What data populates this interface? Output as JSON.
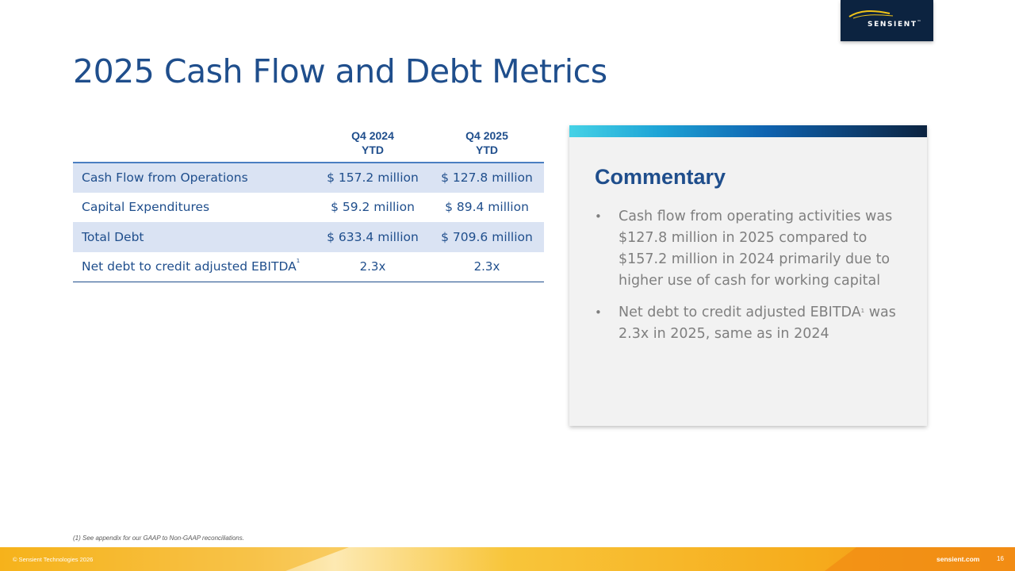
{
  "logo": {
    "text": "SENSIENT",
    "trademark": "™"
  },
  "title": "2025 Cash Flow and Debt Metrics",
  "table": {
    "columns": [
      {
        "line1": "Q4 2024",
        "line2": "YTD"
      },
      {
        "line1": "Q4 2025",
        "line2": "YTD"
      }
    ],
    "rows": [
      {
        "label": "Cash Flow from Operations",
        "sup": "",
        "v2024": "$ 157.2 million",
        "v2025": "$ 127.8 million"
      },
      {
        "label": "Capital Expenditures",
        "sup": "",
        "v2024": "$ 59.2 million",
        "v2025": "$ 89.4 million"
      },
      {
        "label": "Total Debt",
        "sup": "",
        "v2024": "$ 633.4 million",
        "v2025": "$ 709.6 million"
      },
      {
        "label": "Net debt to credit adjusted EBITDA",
        "sup": "1",
        "v2024": "2.3x",
        "v2025": "2.3x"
      }
    ]
  },
  "commentary": {
    "title": "Commentary",
    "bullets": [
      {
        "text": "Cash flow from operating activities was $127.8 million in 2025 compared to $157.2 million in 2024 primarily due to higher use of cash for working capital",
        "sup": "",
        "tail": ""
      },
      {
        "text": "Net debt to credit adjusted EBITDA",
        "sup": "1",
        "tail": " was 2.3x in 2025, same as in 2024"
      }
    ]
  },
  "footnote": "(1) See appendix for our GAAP to Non-GAAP reconciliations.",
  "footer": {
    "copyright": "© Sensient Technologies 2026",
    "site": "sensient.com",
    "page": "16"
  },
  "colors": {
    "title_blue": "#1f4e8c",
    "row_shade": "#dae3f3",
    "logo_navy": "#0c2340",
    "footer_gold": "#f6b21b",
    "footer_orange": "#f28c14"
  }
}
